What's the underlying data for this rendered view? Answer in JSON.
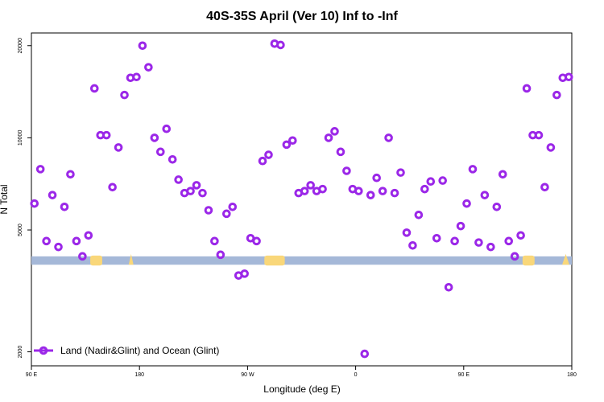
{
  "chart_data": {
    "type": "scatter",
    "title": "40S-35S April (Ver 10)   Inf to -Inf",
    "xlabel": "Longitude (deg E)",
    "ylabel": "N Total",
    "x_tick_labels": [
      "90 E",
      "180",
      "90 W",
      "0",
      "90 E",
      "180"
    ],
    "x_tick_values": [
      90,
      180,
      270,
      360,
      450,
      540
    ],
    "xlim": [
      90,
      540
    ],
    "y_scale": "log",
    "ylim": [
      1800,
      22000
    ],
    "y_ticks": [
      2000,
      5000,
      10000,
      20000
    ],
    "y_tick_labels": [
      "2000",
      "5000",
      "10000",
      "20000"
    ],
    "grid": false,
    "legend_position": "bottom-left",
    "colors": {
      "series": "#9b27e8",
      "land_band": "#a5b8d8",
      "land_patch": "#f9d77a"
    },
    "land_band_range": [
      3850,
      4100
    ],
    "land_patches": [
      {
        "x0": 139,
        "x1": 149,
        "shape": "blob"
      },
      {
        "x0": 171,
        "x1": 175,
        "shape": "spike"
      },
      {
        "x0": 284,
        "x1": 301,
        "shape": "blob"
      },
      {
        "x0": 499,
        "x1": 509,
        "shape": "blob"
      },
      {
        "x0": 532,
        "x1": 538,
        "shape": "spike"
      }
    ],
    "series": [
      {
        "name": "Land (Nadir&Glint) and Ocean (Glint)",
        "x": [
          92.5,
          97.5,
          102.5,
          107.5,
          112.5,
          117.5,
          122.5,
          127.5,
          132.5,
          137.5,
          142.5,
          147.5,
          152.5,
          157.5,
          162.5,
          167.5,
          172.5,
          177.5,
          182.5,
          187.5,
          192.5,
          197.5,
          202.5,
          207.5,
          212.5,
          217.5,
          222.5,
          227.5,
          232.5,
          237.5,
          242.5,
          247.5,
          252.5,
          257.5,
          262.5,
          267.5,
          272.5,
          277.5,
          282.5,
          287.5,
          292.5,
          297.5,
          302.5,
          307.5,
          312.5,
          317.5,
          322.5,
          327.5,
          332.5,
          337.5,
          342.5,
          347.5,
          352.5,
          357.5,
          362.5,
          367.5,
          372.5,
          377.5,
          382.5,
          387.5,
          392.5,
          397.5,
          402.5,
          407.5,
          412.5,
          417.5,
          422.5,
          427.5,
          432.5,
          437.5,
          442.5,
          447.5,
          452.5,
          457.5,
          462.5,
          467.5,
          472.5,
          477.5,
          482.5,
          487.5,
          492.5,
          497.5,
          502.5,
          507.5,
          512.5,
          517.5,
          522.5,
          527.5,
          532.5,
          537.5
        ],
        "y": [
          6100,
          7900,
          4600,
          6500,
          4400,
          5950,
          7600,
          4600,
          4100,
          4800,
          14500,
          10200,
          10200,
          6900,
          9300,
          13800,
          15700,
          15800,
          20000,
          17000,
          10000,
          9000,
          10700,
          8500,
          7300,
          6600,
          6700,
          7000,
          6600,
          5800,
          4600,
          4150,
          5650,
          5950,
          3550,
          3600,
          4700,
          4600,
          8400,
          8800,
          20300,
          20100,
          9500,
          9800,
          6600,
          6700,
          7000,
          6700,
          6800,
          10000,
          10500,
          9000,
          7800,
          6800,
          6700,
          1970,
          6500,
          7400,
          6700,
          10000,
          6600,
          7700,
          4900,
          4450,
          5600,
          6800,
          7200,
          4700,
          7250,
          3250,
          4600,
          5150,
          6100,
          7900,
          4550,
          6500,
          4400,
          5950,
          7600,
          4600,
          4100,
          4800,
          14500,
          10200,
          10200,
          6900,
          9300,
          13800,
          15700,
          15800
        ]
      }
    ]
  }
}
